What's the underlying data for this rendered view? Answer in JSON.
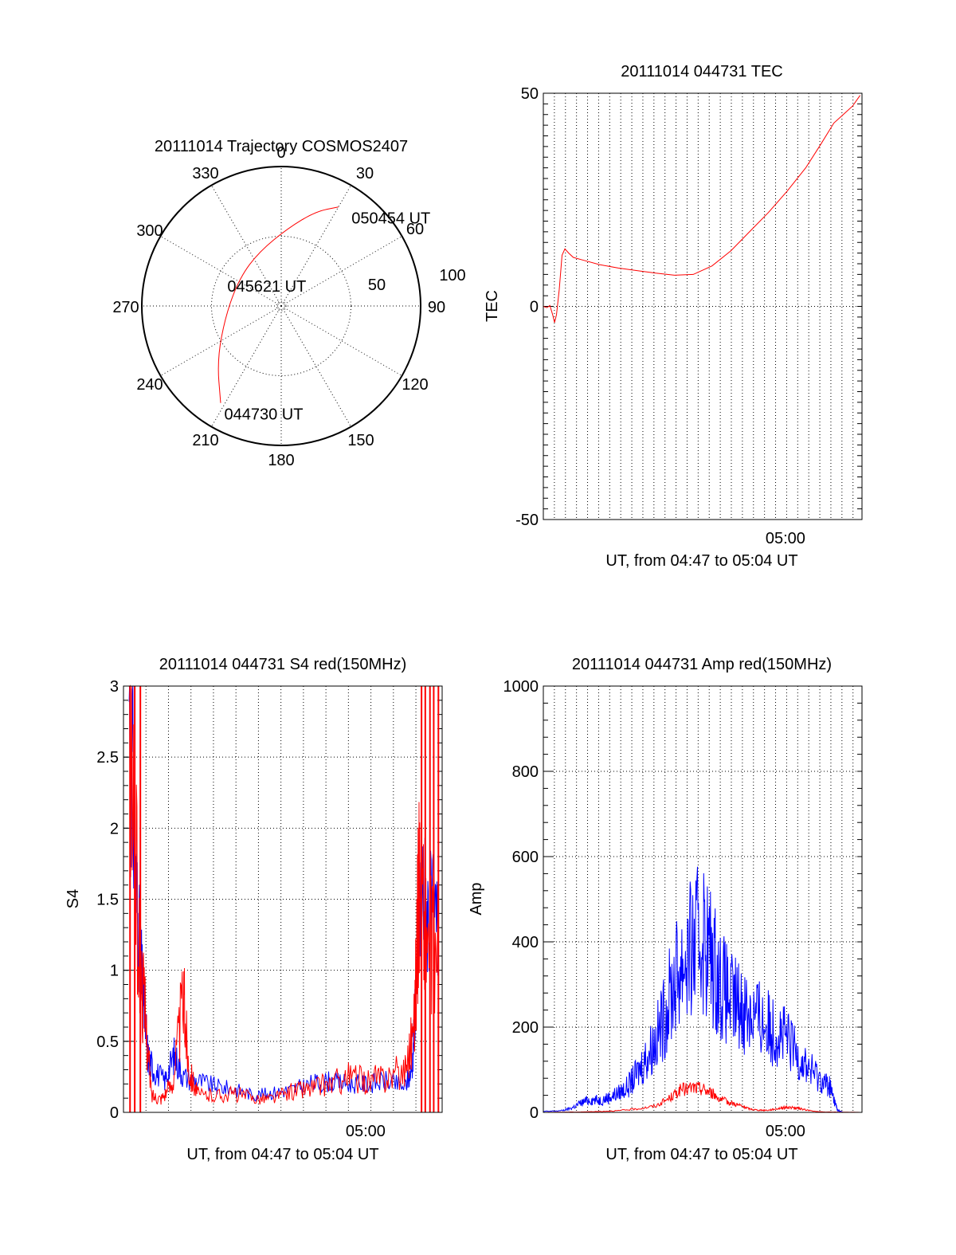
{
  "colors": {
    "red": "#ff0000",
    "blue": "#0000ff",
    "axis": "#000000",
    "background": "#ffffff"
  },
  "chart_data": [
    {
      "id": "trajectory",
      "type": "polar",
      "title": "20111014 Trajectory COSMOS2407",
      "angle_labels": [
        "0",
        "30",
        "60",
        "90",
        "120",
        "150",
        "180",
        "210",
        "240",
        "270",
        "300",
        "330"
      ],
      "angles": [
        0,
        30,
        60,
        90,
        120,
        150,
        180,
        210,
        240,
        270,
        300,
        330
      ],
      "radius_labels": [
        "50",
        "100"
      ],
      "radius_values": [
        50,
        100
      ],
      "rmax": 100,
      "trajectory": {
        "color": "#ff0000",
        "points": [
          {
            "az": 212,
            "r": 82
          },
          {
            "az": 230,
            "r": 60
          },
          {
            "az": 262,
            "r": 40
          },
          {
            "az": 305,
            "r": 36
          },
          {
            "az": 338,
            "r": 42
          },
          {
            "az": 5,
            "r": 56
          },
          {
            "az": 20,
            "r": 72
          },
          {
            "az": 30,
            "r": 82
          }
        ]
      },
      "annotations": [
        {
          "text": "050454 UT",
          "az": 30,
          "r": 82
        },
        {
          "text": "045621 UT",
          "az": 290,
          "r": 8
        },
        {
          "text": "044730 UT",
          "az": 212,
          "r": 82
        }
      ]
    },
    {
      "id": "tec",
      "type": "line",
      "title": "20111014 044731 TEC",
      "xlabel": "UT, from 04:47 to 05:04 UT",
      "ylabel": "TEC",
      "xlim": [
        0,
        17
      ],
      "ylim": [
        -50,
        50
      ],
      "yticks": [
        "50",
        "0",
        "-50"
      ],
      "ytick_values": [
        50,
        0,
        -50
      ],
      "xticks": [
        "05:00"
      ],
      "xtick_values": [
        13
      ],
      "grid": "vertical dotted",
      "series": [
        {
          "color": "#ff0000",
          "points": [
            [
              0,
              0
            ],
            [
              0.2,
              -0.3
            ],
            [
              0.35,
              0.2
            ],
            [
              0.5,
              -2
            ],
            [
              0.6,
              -3.8
            ],
            [
              0.7,
              -2
            ],
            [
              0.85,
              4
            ],
            [
              1.0,
              12
            ],
            [
              1.15,
              13.5
            ],
            [
              1.35,
              12.5
            ],
            [
              1.6,
              11.5
            ],
            [
              2.0,
              11
            ],
            [
              3,
              9.8
            ],
            [
              4,
              9
            ],
            [
              5,
              8.4
            ],
            [
              6,
              7.8
            ],
            [
              7,
              7.3
            ],
            [
              8,
              7.5
            ],
            [
              9,
              9.5
            ],
            [
              10,
              13
            ],
            [
              11,
              17.5
            ],
            [
              12,
              22
            ],
            [
              13,
              27
            ],
            [
              14,
              32.5
            ],
            [
              14.8,
              38
            ],
            [
              15.5,
              43
            ],
            [
              16,
              45
            ],
            [
              16.5,
              47
            ],
            [
              16.9,
              49.5
            ]
          ]
        }
      ]
    },
    {
      "id": "s4",
      "type": "line",
      "title": "20111014 044731 S4 red(150MHz)",
      "xlabel": "UT, from 04:47 to 05:04 UT",
      "ylabel": "S4",
      "xlim": [
        0,
        17
      ],
      "ylim": [
        0,
        3
      ],
      "yticks": [
        "0",
        "0.5",
        "1",
        "1.5",
        "2",
        "2.5",
        "3"
      ],
      "ytick_values": [
        0,
        0.5,
        1,
        1.5,
        2,
        2.5,
        3
      ],
      "xticks": [
        "05:00"
      ],
      "xtick_values": [
        13
      ],
      "grid": "both dotted",
      "series": [
        {
          "color": "#0000ff",
          "points": [
            [
              0.3,
              3
            ],
            [
              0.7,
              1.5
            ],
            [
              1.0,
              0.9
            ],
            [
              1.3,
              0.4
            ],
            [
              1.6,
              0.3
            ],
            [
              2.2,
              0.22
            ],
            [
              2.7,
              0.4
            ],
            [
              3.2,
              0.25
            ],
            [
              4,
              0.22
            ],
            [
              5,
              0.18
            ],
            [
              6,
              0.16
            ],
            [
              7,
              0.12
            ],
            [
              8,
              0.14
            ],
            [
              9,
              0.16
            ],
            [
              10,
              0.2
            ],
            [
              11,
              0.22
            ],
            [
              12,
              0.2
            ],
            [
              13,
              0.2
            ],
            [
              14,
              0.22
            ],
            [
              15,
              0.18
            ],
            [
              15.4,
              0.3
            ],
            [
              15.6,
              0.9
            ],
            [
              15.9,
              1.6
            ],
            [
              16.3,
              1.4
            ],
            [
              16.8,
              1.3
            ]
          ]
        },
        {
          "color": "#ff0000",
          "points": [
            [
              0.3,
              3
            ],
            [
              0.8,
              1.2
            ],
            [
              1.2,
              0.6
            ],
            [
              1.5,
              0.12
            ],
            [
              2.0,
              0.1
            ],
            [
              2.6,
              0.2
            ],
            [
              3.2,
              0.8
            ],
            [
              3.5,
              0.3
            ],
            [
              4,
              0.12
            ],
            [
              5,
              0.12
            ],
            [
              6,
              0.13
            ],
            [
              7,
              0.1
            ],
            [
              8,
              0.1
            ],
            [
              9,
              0.15
            ],
            [
              10,
              0.17
            ],
            [
              11,
              0.2
            ],
            [
              12,
              0.25
            ],
            [
              13,
              0.22
            ],
            [
              14,
              0.25
            ],
            [
              15,
              0.3
            ],
            [
              15.5,
              0.6
            ],
            [
              15.8,
              1.7
            ],
            [
              16.2,
              1.2
            ],
            [
              16.8,
              1.1
            ]
          ]
        }
      ]
    },
    {
      "id": "amp",
      "type": "line",
      "title": "20111014 044731 Amp red(150MHz)",
      "xlabel": "UT, from 04:47 to 05:04 UT",
      "ylabel": "Amp",
      "xlim": [
        0,
        17
      ],
      "ylim": [
        0,
        1000
      ],
      "yticks": [
        "0",
        "200",
        "400",
        "600",
        "800",
        "1000"
      ],
      "ytick_values": [
        0,
        200,
        400,
        600,
        800,
        1000
      ],
      "xticks": [
        "05:00"
      ],
      "xtick_values": [
        13
      ],
      "grid": "both dotted",
      "series": [
        {
          "color": "#0000ff",
          "points": [
            [
              0,
              2
            ],
            [
              1,
              4
            ],
            [
              1.5,
              10
            ],
            [
              2,
              22
            ],
            [
              2.5,
              30
            ],
            [
              3,
              28
            ],
            [
              3.5,
              35
            ],
            [
              4,
              45
            ],
            [
              4.5,
              60
            ],
            [
              5,
              90
            ],
            [
              5.5,
              130
            ],
            [
              6,
              170
            ],
            [
              6.5,
              230
            ],
            [
              7,
              310
            ],
            [
              7.5,
              360
            ],
            [
              8,
              380
            ],
            [
              8.5,
              420
            ],
            [
              9,
              360
            ],
            [
              9.5,
              300
            ],
            [
              10,
              260
            ],
            [
              10.5,
              250
            ],
            [
              11,
              240
            ],
            [
              11.5,
              220
            ],
            [
              12,
              200
            ],
            [
              12.5,
              190
            ],
            [
              13,
              170
            ],
            [
              13.5,
              140
            ],
            [
              14,
              110
            ],
            [
              14.5,
              90
            ],
            [
              15,
              70
            ],
            [
              15.3,
              60
            ],
            [
              15.5,
              30
            ],
            [
              15.7,
              5
            ],
            [
              16,
              0
            ],
            [
              17,
              0
            ]
          ]
        },
        {
          "color": "#ff0000",
          "points": [
            [
              0,
              0
            ],
            [
              2,
              1
            ],
            [
              3,
              2
            ],
            [
              4,
              4
            ],
            [
              5,
              8
            ],
            [
              6,
              15
            ],
            [
              6.8,
              35
            ],
            [
              7.3,
              52
            ],
            [
              8,
              58
            ],
            [
              8.5,
              55
            ],
            [
              9,
              45
            ],
            [
              9.5,
              30
            ],
            [
              10,
              22
            ],
            [
              10.5,
              16
            ],
            [
              11,
              8
            ],
            [
              11.5,
              5
            ],
            [
              12,
              5
            ],
            [
              12.5,
              9
            ],
            [
              13,
              12
            ],
            [
              13.5,
              10
            ],
            [
              14,
              6
            ],
            [
              14.5,
              2
            ],
            [
              15,
              1
            ],
            [
              17,
              0
            ]
          ]
        }
      ]
    }
  ]
}
